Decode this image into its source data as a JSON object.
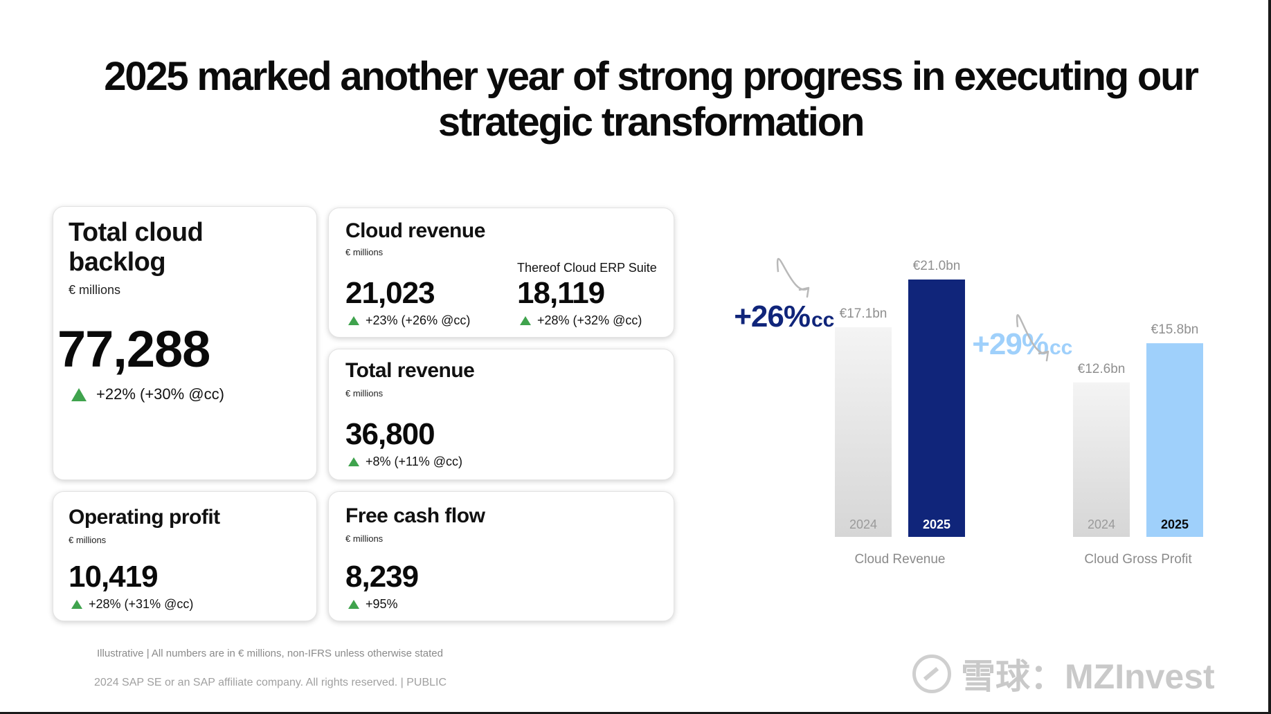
{
  "headline": "2025 marked another year of strong progress in executing our strategic transformation",
  "cards": {
    "backlog": {
      "title": "Total cloud backlog",
      "unit": "€ millions",
      "value": "77,288",
      "growth": "+22% (+30% @cc)"
    },
    "cloud_revenue": {
      "title": "Cloud revenue",
      "unit": "€ millions",
      "value": "21,023",
      "growth": "+23% (+26% @cc)",
      "sub_label": "Thereof Cloud ERP Suite",
      "sub_value": "18,119",
      "sub_growth": "+28% (+32% @cc)"
    },
    "total_revenue": {
      "title": "Total revenue",
      "unit": "€ millions",
      "value": "36,800",
      "growth": "+8% (+11% @cc)"
    },
    "operating_profit": {
      "title": "Operating profit",
      "unit": "€ millions",
      "value": "10,419",
      "growth": "+28% (+31% @cc)"
    },
    "free_cash_flow": {
      "title": "Free cash flow",
      "unit": "€ millions",
      "value": "8,239",
      "growth": "+95%"
    }
  },
  "chart_data": [
    {
      "type": "bar",
      "title": "Cloud Revenue",
      "categories": [
        "2024",
        "2025"
      ],
      "values": [
        17.1,
        21.0
      ],
      "value_labels": [
        "€17.1bn",
        "€21.0bn"
      ],
      "growth_label": "+26%",
      "growth_suffix": "cc",
      "colors": [
        "#e6e6e6",
        "#10257a"
      ],
      "growth_color": "#10257a",
      "ylim": [
        0,
        21.0
      ]
    },
    {
      "type": "bar",
      "title": "Cloud Gross Profit",
      "categories": [
        "2024",
        "2025"
      ],
      "values": [
        12.6,
        15.8
      ],
      "value_labels": [
        "€12.6bn",
        "€15.8bn"
      ],
      "growth_label": "+29%",
      "growth_suffix": "cc",
      "colors": [
        "#e6e6e6",
        "#9fd0fb"
      ],
      "growth_color": "#9fd0fb",
      "ylim": [
        0,
        21.0
      ]
    }
  ],
  "footnote": "Illustrative | All numbers are in € millions, non-IFRS unless otherwise stated",
  "footer": "2024 SAP SE or an SAP affiliate company. All rights reserved.  | PUBLIC",
  "watermark": "雪球：MZInvest"
}
